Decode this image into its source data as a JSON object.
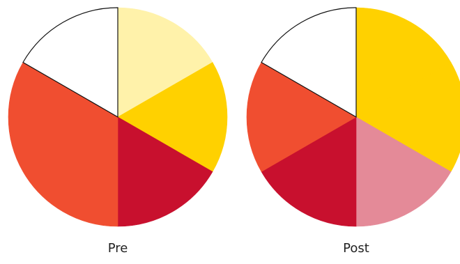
{
  "chart_data": [
    {
      "type": "pie",
      "label": "Pre",
      "start_angle_deg": 0,
      "direction": "clockwise",
      "slices": [
        {
          "value": 1,
          "color": "#FFF2AA"
        },
        {
          "value": 1,
          "color": "#FFD100"
        },
        {
          "value": 1,
          "color": "#C8102E"
        },
        {
          "value": 2,
          "color": "#F04E30"
        },
        {
          "value": 1,
          "color": "#FFFFFF"
        }
      ]
    },
    {
      "type": "pie",
      "label": "Post",
      "start_angle_deg": 0,
      "direction": "clockwise",
      "slices": [
        {
          "value": 1,
          "color": "#FFD100"
        },
        {
          "value": 1,
          "color": "#FFD100"
        },
        {
          "value": 1,
          "color": "#E48A98"
        },
        {
          "value": 1,
          "color": "#C8102E"
        },
        {
          "value": 1,
          "color": "#F04E30"
        },
        {
          "value": 1,
          "color": "#FFFFFF"
        }
      ]
    }
  ],
  "outline_color": "#111111"
}
